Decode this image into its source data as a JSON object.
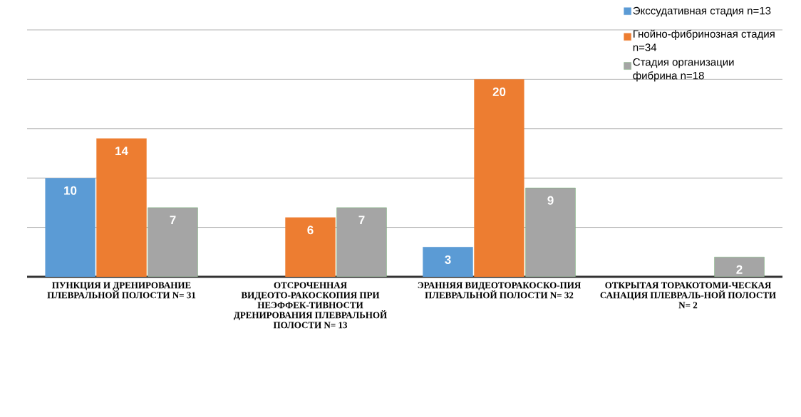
{
  "chart_data": {
    "type": "bar",
    "categories": [
      "ПУНКЦИЯ И ДРЕНИРОВАНИЕ ПЛЕВРАЛЬНОЙ ПОЛОСТИ N= 31",
      "ОТСРОЧЕННАЯ ВИДЕОТО-РАКОСКОПИЯ ПРИ НЕЭФФЕК-ТИВНОСТИ ДРЕНИРОВАНИЯ ПЛЕВРАЛЬНОЙ ПОЛОСТИ N= 13",
      "ЭРАННЯЯ ВИДЕОТОРАКОСКО-ПИЯ ПЛЕВРАЛЬНОЙ ПОЛОСТИ N= 32",
      "ОТКРЫТАЯ ТОРАКОТОМИ-ЧЕСКАЯ САНАЦИЯ ПЛЕВРАЛЬ-НОЙ ПОЛОСТИ N= 2"
    ],
    "series": [
      {
        "name": "Экссудативная стадия n=13",
        "color": "#5b9bd5",
        "values": [
          10,
          null,
          3,
          null
        ]
      },
      {
        "name": "Гнойно-фибринозная стадия  n=34",
        "color": "#ed7d31",
        "values": [
          14,
          6,
          20,
          null
        ]
      },
      {
        "name": "Стадия организации фибрина  n=18",
        "color": "#a5a5a5",
        "values": [
          7,
          7,
          9,
          2
        ]
      }
    ],
    "ylim": [
      0,
      25
    ],
    "yticks": [
      {
        "value": 0,
        "label": null
      },
      {
        "value": 5,
        "label": null
      },
      {
        "value": 10,
        "label": null
      },
      {
        "value": 15,
        "label": null
      },
      {
        "value": 20,
        "label": null
      },
      {
        "value": 25,
        "label": null
      }
    ],
    "grid": "y",
    "legend": "top right",
    "tick_labels": "x",
    "data_labels": true
  }
}
